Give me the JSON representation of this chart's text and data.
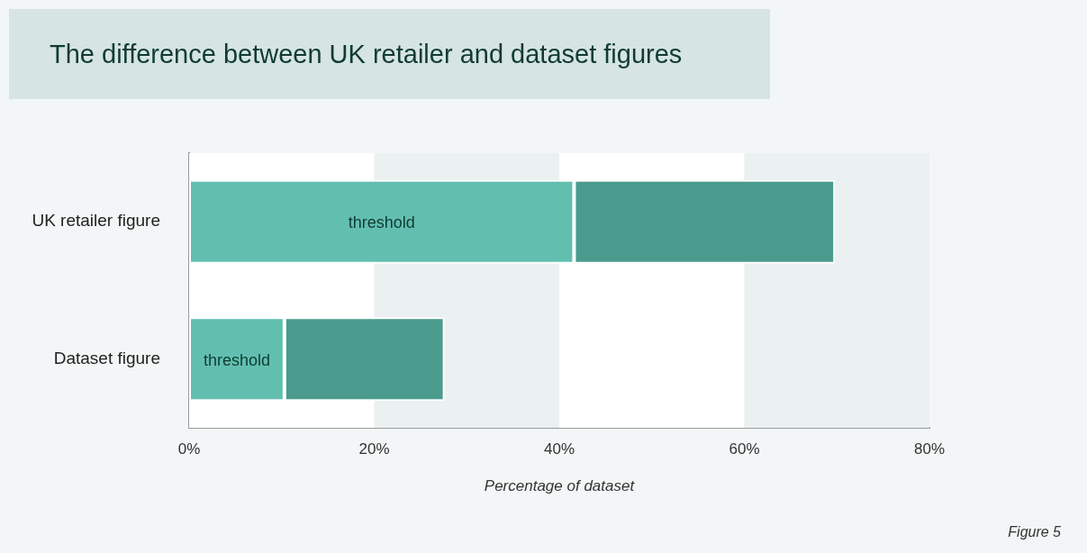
{
  "chart_data": {
    "type": "bar",
    "orientation": "horizontal",
    "stacked": true,
    "title": "The difference between UK retailer and dataset figures",
    "xlabel": "Percentage of dataset",
    "categories": [
      "UK retailer figure",
      "Dataset figure"
    ],
    "series": [
      {
        "name": "threshold",
        "color": "#62bfb0",
        "values": [
          41.6,
          10.3
        ]
      },
      {
        "color": "#4a9b8d",
        "values": [
          28.2,
          17.3
        ]
      }
    ],
    "xlim": [
      0,
      80
    ],
    "xticks": [
      {
        "value": 0,
        "label": "0%"
      },
      {
        "value": 20,
        "label": "20%"
      },
      {
        "value": 40,
        "label": "40%"
      },
      {
        "value": 60,
        "label": "60%"
      },
      {
        "value": 80,
        "label": "80%"
      }
    ],
    "bands": [
      {
        "axis": "x",
        "from": 20,
        "to": 40,
        "color": "#ebf0f0"
      },
      {
        "axis": "x",
        "from": 60,
        "to": 80,
        "color": "#ebf0f0"
      }
    ],
    "grid": false,
    "legend": false,
    "annotations": [
      "Figure 5"
    ]
  }
}
